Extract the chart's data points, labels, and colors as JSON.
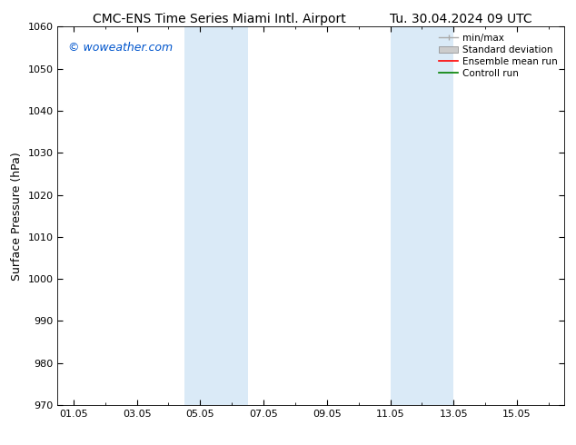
{
  "title_left": "CMC-ENS Time Series Miami Intl. Airport",
  "title_right": "Tu. 30.04.2024 09 UTC",
  "ylabel": "Surface Pressure (hPa)",
  "ylim": [
    970,
    1060
  ],
  "yticks": [
    970,
    980,
    990,
    1000,
    1010,
    1020,
    1030,
    1040,
    1050,
    1060
  ],
  "xtick_labels": [
    "01.05",
    "03.05",
    "05.05",
    "07.05",
    "09.05",
    "11.05",
    "13.05",
    "15.05"
  ],
  "xtick_positions": [
    0,
    2,
    4,
    6,
    8,
    10,
    12,
    14
  ],
  "xlim": [
    -0.5,
    15.5
  ],
  "shaded_regions": [
    {
      "x_start": 3.5,
      "x_end": 5.5,
      "color": "#daeaf7"
    },
    {
      "x_start": 10.0,
      "x_end": 12.0,
      "color": "#daeaf7"
    }
  ],
  "watermark": "© woweather.com",
  "watermark_color": "#0055cc",
  "background_color": "#ffffff",
  "legend_items": [
    {
      "label": "min/max",
      "color": "#aaaaaa",
      "lw": 1.0,
      "style": "minmax"
    },
    {
      "label": "Standard deviation",
      "color": "#cccccc",
      "lw": 5,
      "style": "band"
    },
    {
      "label": "Ensemble mean run",
      "color": "#ff0000",
      "lw": 1.2,
      "style": "line"
    },
    {
      "label": "Controll run",
      "color": "#008000",
      "lw": 1.2,
      "style": "line"
    }
  ],
  "title_fontsize": 10,
  "axis_label_fontsize": 9,
  "tick_fontsize": 8,
  "legend_fontsize": 7.5,
  "watermark_fontsize": 9
}
